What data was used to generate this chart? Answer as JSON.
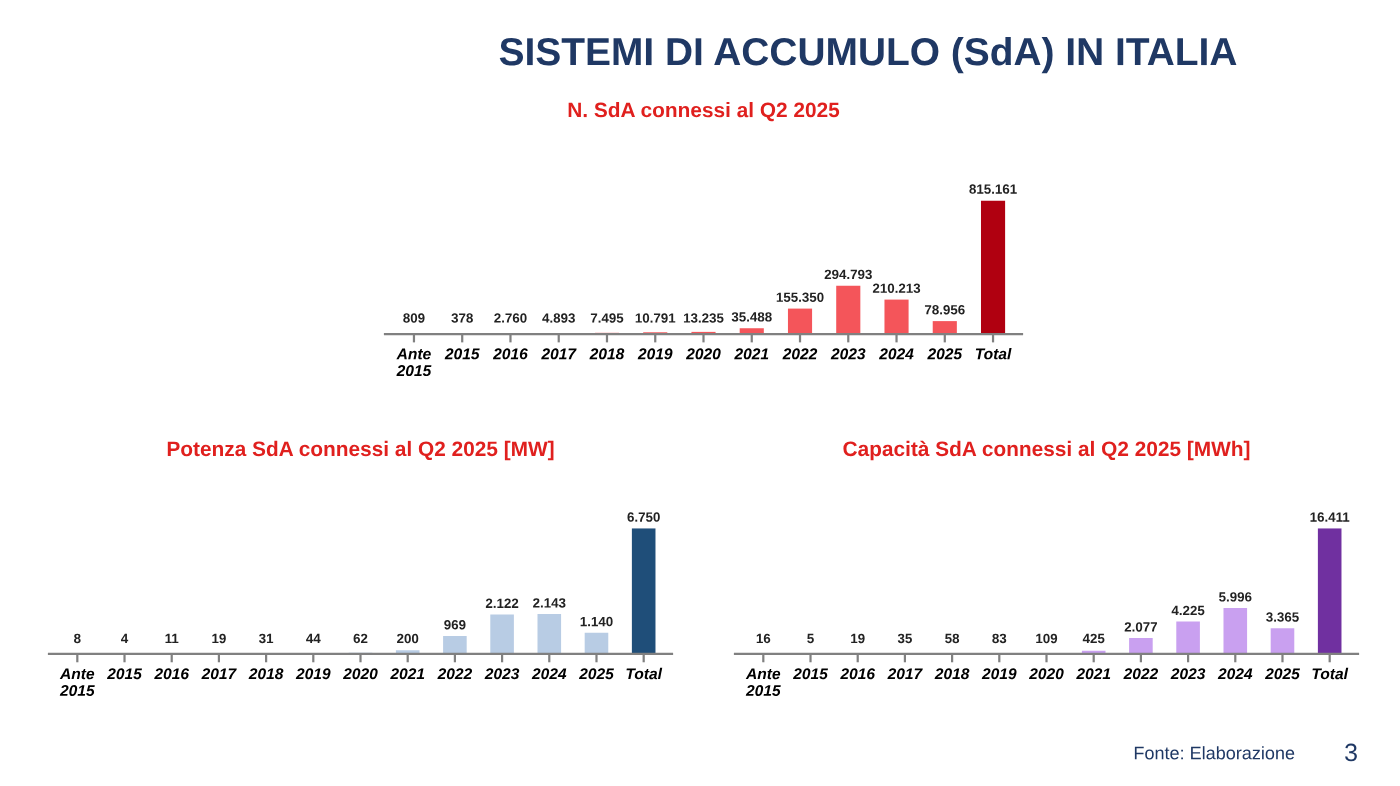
{
  "chart_data": [
    {
      "type": "other",
      "title": "SISTEMI DI ACCUMULO (SdA) IN ITALIA",
      "annotations": [
        "Fonte: Elaborazione",
        "3"
      ]
    },
    {
      "type": "bar",
      "title": "N. SdA connessi al Q2 2025",
      "categories": [
        "Ante\n2015",
        "2015",
        "2016",
        "2017",
        "2018",
        "2019",
        "2020",
        "2021",
        "2022",
        "2023",
        "2024",
        "2025",
        "Total"
      ],
      "values": [
        809,
        378,
        2760,
        4893,
        7495,
        10791,
        13235,
        35488,
        155350,
        294793,
        210213,
        78956,
        815161
      ],
      "value_labels": [
        "809",
        "378",
        "2.760",
        "4.893",
        "7.495",
        "10.791",
        "13.235",
        "35.488",
        "155.350",
        "294.793",
        "210.213",
        "78.956",
        "815.161"
      ],
      "colors": [
        "#f4555a",
        "#f4555a",
        "#f4555a",
        "#f4555a",
        "#f4555a",
        "#f4555a",
        "#f4555a",
        "#f4555a",
        "#f4555a",
        "#f4555a",
        "#f4555a",
        "#f4555a",
        "#b00010"
      ]
    },
    {
      "type": "bar",
      "title": "Potenza SdA connessi al Q2 2025 [MW]",
      "categories": [
        "Ante\n2015",
        "2015",
        "2016",
        "2017",
        "2018",
        "2019",
        "2020",
        "2021",
        "2022",
        "2023",
        "2024",
        "2025",
        "Total"
      ],
      "values": [
        8,
        4,
        11,
        19,
        31,
        44,
        62,
        200,
        969,
        2122,
        2143,
        1140,
        6750
      ],
      "value_labels": [
        "8",
        "4",
        "11",
        "19",
        "31",
        "44",
        "62",
        "200",
        "969",
        "2.122",
        "2.143",
        "1.140",
        "6.750"
      ],
      "colors": [
        "#b8cce4",
        "#b8cce4",
        "#b8cce4",
        "#b8cce4",
        "#b8cce4",
        "#b8cce4",
        "#b8cce4",
        "#b8cce4",
        "#b8cce4",
        "#b8cce4",
        "#b8cce4",
        "#b8cce4",
        "#1f4e79"
      ]
    },
    {
      "type": "bar",
      "title": "Capacità SdA connessi al Q2 2025 [MWh]",
      "categories": [
        "Ante\n2015",
        "2015",
        "2016",
        "2017",
        "2018",
        "2019",
        "2020",
        "2021",
        "2022",
        "2023",
        "2024",
        "2025",
        "Total"
      ],
      "values": [
        16,
        5,
        19,
        35,
        58,
        83,
        109,
        425,
        2077,
        4225,
        5996,
        3365,
        16411
      ],
      "value_labels": [
        "16",
        "5",
        "19",
        "35",
        "58",
        "83",
        "109",
        "425",
        "2.077",
        "4.225",
        "5.996",
        "3.365",
        "16.411"
      ],
      "colors": [
        "#c9a0f0",
        "#c9a0f0",
        "#c9a0f0",
        "#c9a0f0",
        "#c9a0f0",
        "#c9a0f0",
        "#c9a0f0",
        "#c9a0f0",
        "#c9a0f0",
        "#c9a0f0",
        "#c9a0f0",
        "#c9a0f0",
        "#7030a0"
      ]
    }
  ]
}
